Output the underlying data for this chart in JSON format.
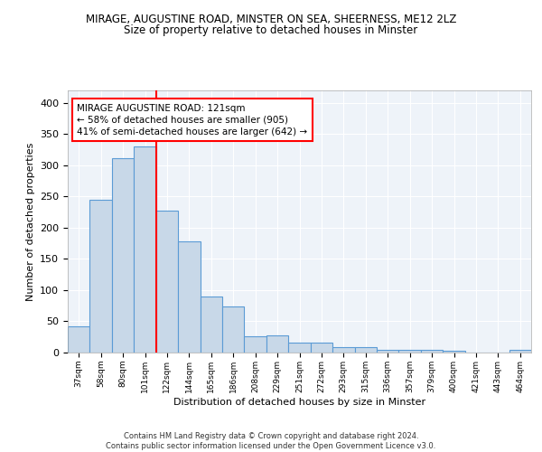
{
  "title1": "MIRAGE, AUGUSTINE ROAD, MINSTER ON SEA, SHEERNESS, ME12 2LZ",
  "title2": "Size of property relative to detached houses in Minster",
  "xlabel": "Distribution of detached houses by size in Minster",
  "ylabel": "Number of detached properties",
  "bar_labels": [
    "37sqm",
    "58sqm",
    "80sqm",
    "101sqm",
    "122sqm",
    "144sqm",
    "165sqm",
    "186sqm",
    "208sqm",
    "229sqm",
    "251sqm",
    "272sqm",
    "293sqm",
    "315sqm",
    "336sqm",
    "357sqm",
    "379sqm",
    "400sqm",
    "421sqm",
    "443sqm",
    "464sqm"
  ],
  "bar_values": [
    42,
    245,
    312,
    330,
    228,
    178,
    90,
    74,
    26,
    27,
    16,
    16,
    8,
    8,
    5,
    5,
    4,
    3,
    0,
    0,
    4
  ],
  "bar_color": "#c8d8e8",
  "bar_edge_color": "#5b9bd5",
  "vline_index": 3.5,
  "annotation_text": "MIRAGE AUGUSTINE ROAD: 121sqm\n← 58% of detached houses are smaller (905)\n41% of semi-detached houses are larger (642) →",
  "footer": "Contains HM Land Registry data © Crown copyright and database right 2024.\nContains public sector information licensed under the Open Government Licence v3.0.",
  "ylim": [
    0,
    420
  ],
  "bg_color": "#eef3f9",
  "grid_color": "#ffffff"
}
